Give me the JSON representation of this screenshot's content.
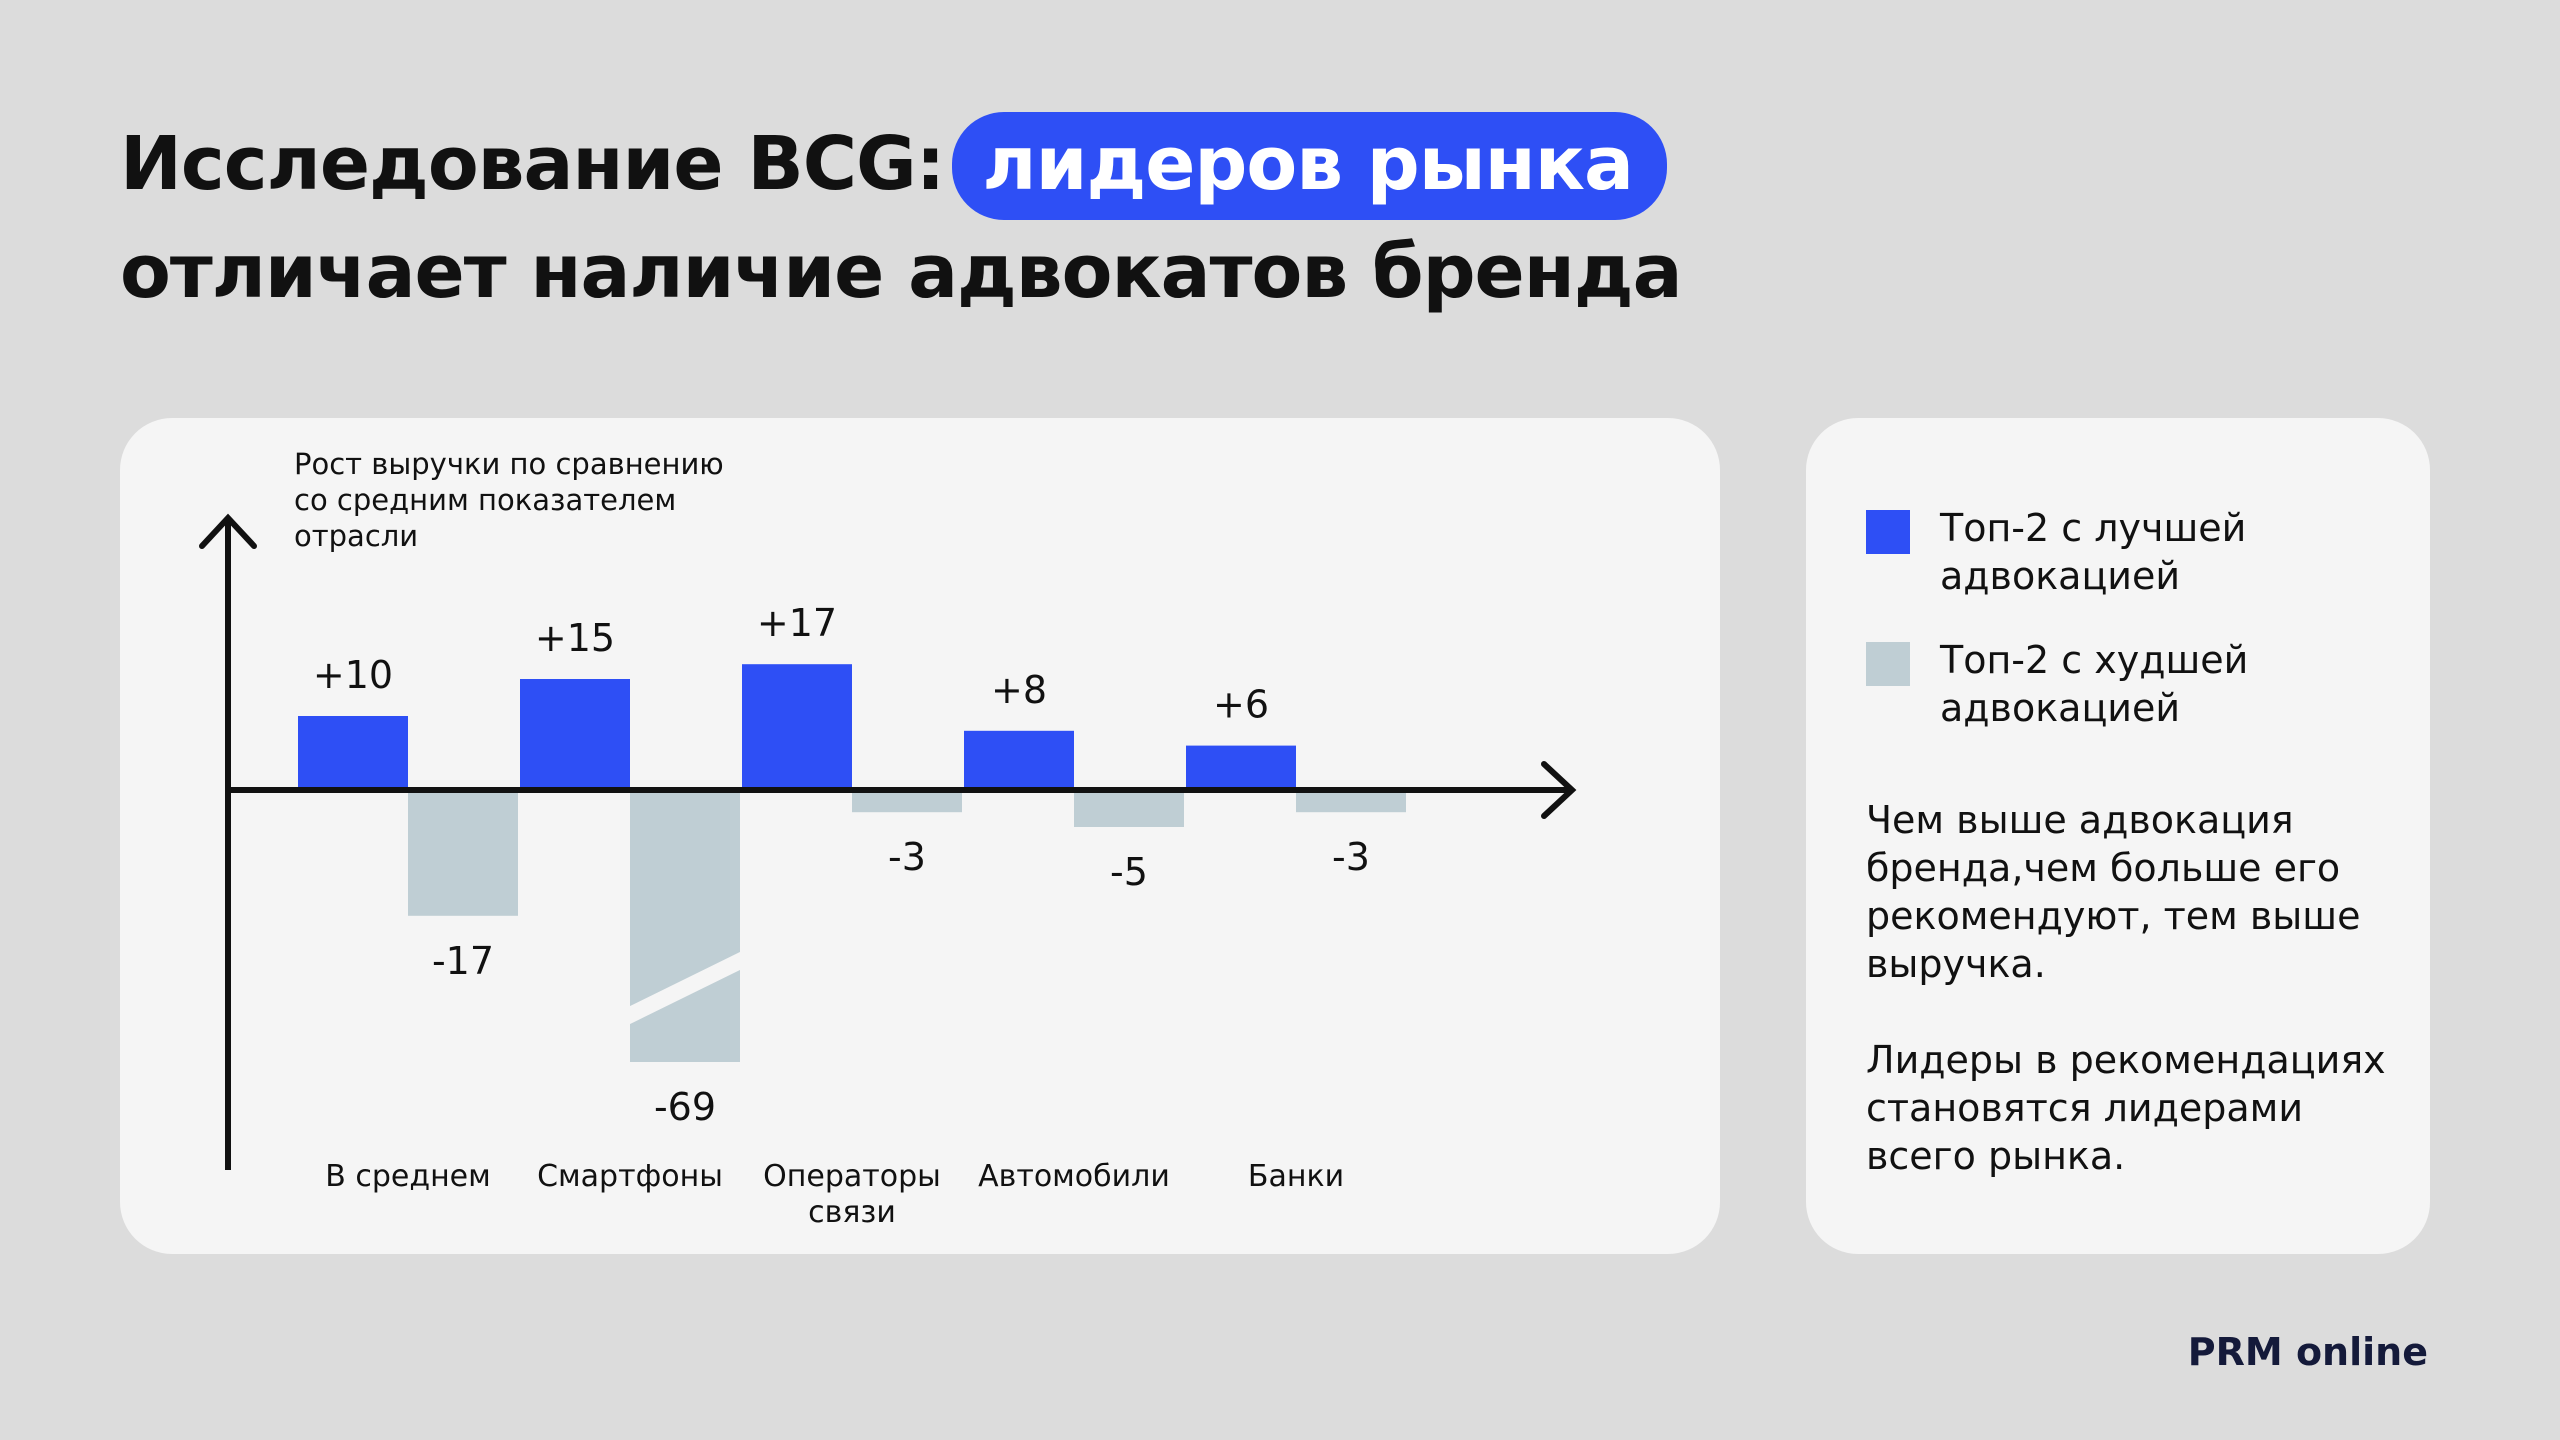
{
  "title": {
    "part1": "Исследование BCG:",
    "highlight": "лидеров рынка",
    "line2": "отличает наличие адвокатов бренда"
  },
  "chart_data": {
    "type": "bar",
    "ylabel": "Рост выручки по сравнению со средним показателем отрасли",
    "categories": [
      "В среднем",
      "Смартфоны",
      "Операторы связи",
      "Автомобили",
      "Банки"
    ],
    "category_lines": [
      [
        "В среднем"
      ],
      [
        "Смартфоны"
      ],
      [
        "Операторы",
        "связи"
      ],
      [
        "Автомобили"
      ],
      [
        "Банки"
      ]
    ],
    "series": [
      {
        "name": "Топ-2 с лучшей адвокацией",
        "color": "#2e4ff5",
        "values": [
          10,
          15,
          17,
          8,
          6
        ],
        "labels": [
          "+10",
          "+15",
          "+17",
          "+8",
          "+6"
        ]
      },
      {
        "name": "Топ-2 с худшей адвокацией",
        "color": "#bfced4",
        "values": [
          -17,
          -69,
          -3,
          -5,
          -3
        ],
        "labels": [
          "-17",
          "-69",
          "-3",
          "-5",
          "-3"
        ]
      }
    ],
    "axis_break": {
      "series": 1,
      "category": 1
    },
    "grid": false
  },
  "legend": {
    "items": [
      {
        "line1": "Топ-2 с лучшей",
        "line2": "адвокацией",
        "color": "#2e4ff5"
      },
      {
        "line1": "Топ-2 с худшей",
        "line2": "адвокацией",
        "color": "#bfced4"
      }
    ]
  },
  "notes": {
    "p1": [
      "Чем выше адвокация",
      "бренда,чем больше его",
      "рекомендуют, тем выше",
      "выручка."
    ],
    "p2": [
      "Лидеры в рекомендациях",
      "становятся лидерами",
      "всего рынка."
    ]
  },
  "brand": "PRM online"
}
